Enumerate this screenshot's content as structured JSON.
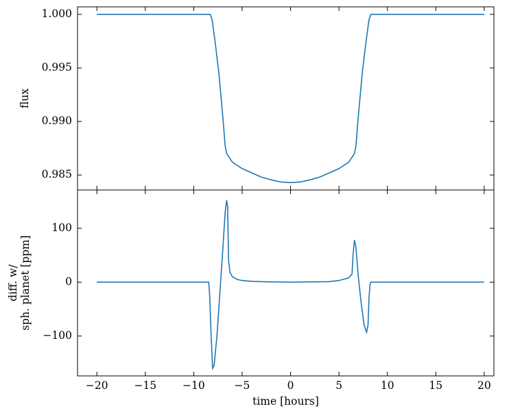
{
  "chart_data": [
    {
      "type": "line",
      "ylabel": "flux",
      "color": "#1f77b4",
      "x": [
        -20,
        -8.3,
        -8.1,
        -7.8,
        -7.4,
        -7.0,
        -6.75,
        -6.6,
        -6,
        -5,
        -4,
        -3,
        -2,
        -1,
        0,
        1,
        2,
        3,
        4,
        5,
        6,
        6.6,
        6.75,
        7.0,
        7.4,
        7.8,
        8.1,
        8.3,
        20
      ],
      "values": [
        1.0,
        1.0,
        0.9995,
        0.9975,
        0.9945,
        0.9905,
        0.9877,
        0.987,
        0.9862,
        0.9856,
        0.9852,
        0.9848,
        0.98455,
        0.98435,
        0.98429,
        0.98435,
        0.98455,
        0.9848,
        0.9852,
        0.9856,
        0.9862,
        0.987,
        0.9877,
        0.9905,
        0.9945,
        0.9975,
        0.9995,
        1.0,
        1.0
      ],
      "xlim": [
        -22,
        21
      ],
      "xticks": [
        -20,
        -15,
        -10,
        -5,
        0,
        5,
        10,
        15,
        20
      ],
      "ylim": [
        0.9836,
        1.0007
      ],
      "yticks": [
        {
          "value": 0.985,
          "label": "0.985"
        },
        {
          "value": 0.99,
          "label": "0.990"
        },
        0.995,
        {
          "value": 1.0,
          "label": "1.000"
        }
      ]
    },
    {
      "type": "line",
      "ylabel": [
        "diff. w/",
        "sph. planet [ppm]"
      ],
      "xlabel": "time [hours]",
      "color": "#1f77b4",
      "x": [
        -20,
        -8.45,
        -8.35,
        -8.2,
        -8.05,
        -7.9,
        -7.6,
        -7.3,
        -7.0,
        -6.75,
        -6.6,
        -6.5,
        -6.4,
        -6.25,
        -6.0,
        -5.5,
        -5,
        -4,
        -2,
        0,
        2,
        4,
        5,
        6,
        6.35,
        6.45,
        6.6,
        6.75,
        7.0,
        7.3,
        7.6,
        7.85,
        8.0,
        8.1,
        8.2,
        8.3,
        20
      ],
      "values": [
        0,
        0,
        -25,
        -100,
        -160,
        -155,
        -100,
        -20,
        60,
        130,
        152,
        140,
        40,
        18,
        10,
        5,
        3,
        1.5,
        0.5,
        0,
        0.5,
        1,
        3,
        8,
        15,
        50,
        78,
        65,
        10,
        -40,
        -80,
        -93,
        -80,
        -30,
        -5,
        0,
        0
      ],
      "xlim": [
        -22,
        21
      ],
      "xticks": [
        {
          "value": -20,
          "label": "−20"
        },
        {
          "value": -15,
          "label": "−15"
        },
        {
          "value": -10,
          "label": "−10"
        },
        {
          "value": -5,
          "label": "−5"
        },
        0,
        5,
        10,
        15,
        20
      ],
      "ylim": [
        -174,
        171
      ],
      "yticks": [
        {
          "value": -100,
          "label": "−100"
        },
        0,
        100
      ]
    }
  ]
}
